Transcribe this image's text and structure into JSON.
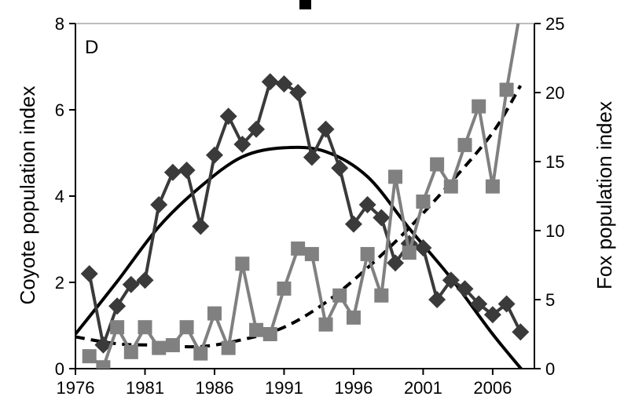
{
  "chart_data": {
    "type": "line",
    "panel_label": "D",
    "xlabel": "",
    "ylabel": "Coyote population index",
    "y2label": "Fox population index",
    "xlim": [
      1976,
      2009
    ],
    "ylim": [
      0,
      8
    ],
    "y2lim": [
      0,
      25
    ],
    "xticks": [
      1976,
      1981,
      1986,
      1991,
      1996,
      2001,
      2006
    ],
    "yticks": [
      0,
      2,
      4,
      6,
      8
    ],
    "y2ticks": [
      0,
      5,
      10,
      15,
      20,
      25
    ],
    "grid": false,
    "colors": {
      "coyote": "#3a3a3a",
      "fox": "#808080",
      "coyote_trend": "#000000",
      "fox_trend": "#000000"
    },
    "series": [
      {
        "axis": "left",
        "marker": "diamond",
        "x": [
          1977,
          1978,
          1979,
          1980,
          1981,
          1982,
          1983,
          1984,
          1985,
          1986,
          1987,
          1988,
          1989,
          1990,
          1991,
          1992,
          1993,
          1994,
          1995,
          1996,
          1997,
          1998,
          1999,
          2000,
          2001,
          2002,
          2003,
          2004,
          2005,
          2006,
          2007,
          2008
        ],
        "values": [
          2.2,
          0.55,
          1.45,
          1.95,
          2.05,
          3.8,
          4.55,
          4.6,
          3.3,
          4.95,
          5.85,
          5.2,
          5.55,
          6.65,
          6.6,
          6.4,
          4.9,
          5.55,
          4.65,
          3.35,
          3.8,
          3.5,
          2.45,
          2.9,
          2.8,
          1.6,
          2.05,
          1.85,
          1.5,
          1.25,
          1.5,
          0.85
        ]
      },
      {
        "axis": "right",
        "marker": "square",
        "x": [
          1977,
          1978,
          1979,
          1980,
          1981,
          1982,
          1983,
          1984,
          1985,
          1986,
          1987,
          1988,
          1989,
          1990,
          1991,
          1992,
          1993,
          1994,
          1995,
          1996,
          1997,
          1998,
          1999,
          2000,
          2001,
          2002,
          2003,
          2004,
          2005,
          2006,
          2007,
          2008
        ],
        "values": [
          0.9,
          0.1,
          3.0,
          1.2,
          3.0,
          1.5,
          1.7,
          3.0,
          1.1,
          4.0,
          1.5,
          7.6,
          2.8,
          2.5,
          5.8,
          8.7,
          8.3,
          3.2,
          5.3,
          3.7,
          8.3,
          5.3,
          13.9,
          8.4,
          12.1,
          14.8,
          13.2,
          16.2,
          19.0,
          13.2,
          20.2,
          26.0
        ]
      }
    ],
    "trendlines": [
      {
        "axis": "left",
        "style": "solid",
        "x": [
          1976,
          1979,
          1982,
          1985,
          1988,
          1991,
          1994,
          1997,
          2000,
          2003,
          2006,
          2008.3
        ],
        "values": [
          0.8,
          2.02,
          3.29,
          4.22,
          4.91,
          5.12,
          5.03,
          4.45,
          3.25,
          2.1,
          0.8,
          -0.1
        ]
      },
      {
        "axis": "right",
        "style": "dashed",
        "x": [
          1976,
          1979,
          1982,
          1985,
          1988,
          1991,
          1994,
          1997,
          2000,
          2003,
          2006,
          2008
        ],
        "values": [
          2.3,
          1.8,
          1.7,
          1.6,
          2.1,
          3.0,
          4.8,
          7.3,
          10.2,
          13.5,
          17.1,
          20.5
        ]
      }
    ]
  }
}
